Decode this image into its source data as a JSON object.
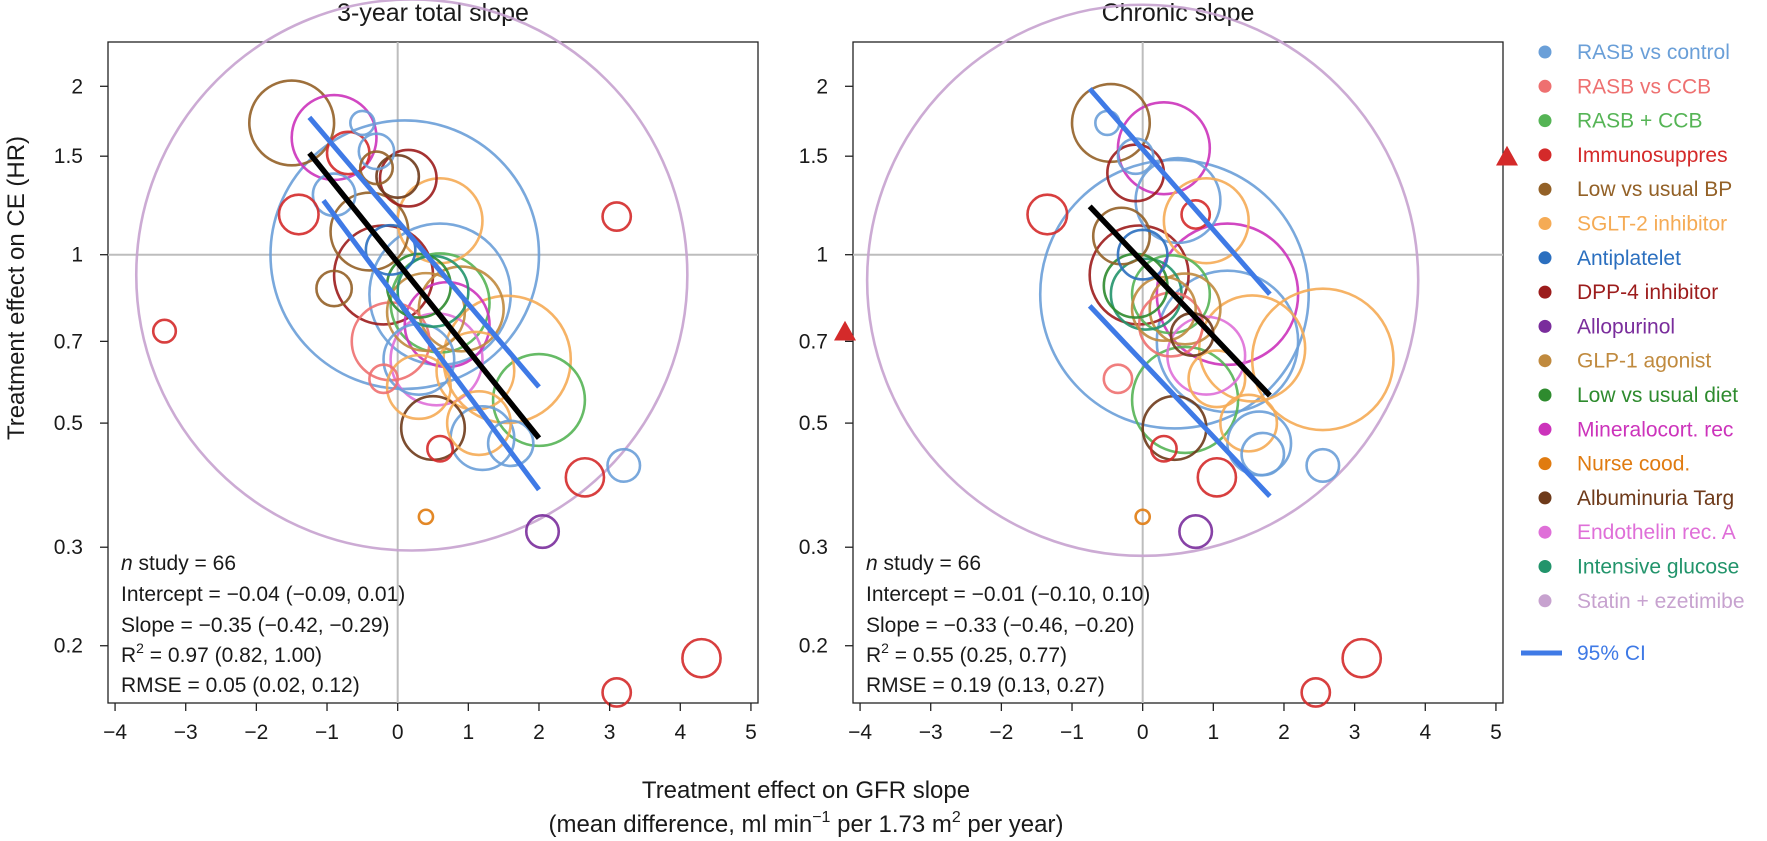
{
  "chart_data": {
    "type": "scatter",
    "shared": {
      "ylabel": "Treatment effect on CE (HR)",
      "xlabel_line1": "Treatment effect on GFR slope",
      "xlabel_line2_parts": [
        "(mean difference, ml min",
        "−1",
        " per 1.73 m",
        "2",
        " per year)"
      ],
      "x_ticks": [
        -4,
        -3,
        -2,
        -1,
        0,
        1,
        2,
        3,
        4,
        5
      ],
      "x_tick_labels": [
        "−4",
        "−3",
        "−2",
        "−1",
        "0",
        "1",
        "2",
        "3",
        "4",
        "5"
      ],
      "y_ticks": [
        0.2,
        0.3,
        0.5,
        0.7,
        1,
        1.5,
        2
      ],
      "y_tick_labels": [
        "0.2",
        "0.3",
        "0.5",
        "0.7",
        "1",
        "1.5",
        "2"
      ],
      "xlim": [
        -4.1,
        5.1
      ],
      "ylim": [
        0.158,
        2.4
      ],
      "y_scale": "log",
      "reference_lines": {
        "x": 0,
        "y": 1
      }
    },
    "categories": [
      {
        "name": "RASB vs control",
        "color": "#6a9fd8"
      },
      {
        "name": "RASB vs CCB",
        "color": "#ee7070"
      },
      {
        "name": "RASB + CCB",
        "color": "#55b455"
      },
      {
        "name": "Immunosuppres",
        "color": "#d42a2a"
      },
      {
        "name": "Low vs usual BP",
        "color": "#936127"
      },
      {
        "name": "SGLT-2 inhibitor",
        "color": "#f5ab55"
      },
      {
        "name": "Antiplatelet",
        "color": "#2b6fbf"
      },
      {
        "name": "DPP-4 inhibitor",
        "color": "#9c1c1c"
      },
      {
        "name": "Allopurinol",
        "color": "#7a2d9c"
      },
      {
        "name": "GLP-1 agonist",
        "color": "#c08a3e"
      },
      {
        "name": "Low vs usual diet",
        "color": "#2e8b2e"
      },
      {
        "name": "Mineralocort. rec",
        "color": "#cc33bb"
      },
      {
        "name": "Nurse cood.",
        "color": "#e07b10"
      },
      {
        "name": "Albuminuria Targ",
        "color": "#6e3a1a"
      },
      {
        "name": "Endothelin rec. A",
        "color": "#df6fd8"
      },
      {
        "name": "Intensive glucose",
        "color": "#22946b"
      },
      {
        "name": "Statin + ezetimibe",
        "color": "#c7a2cf"
      }
    ],
    "legend_ci_label": "95% CI",
    "panels": [
      {
        "title": "3-year total slope",
        "stats": {
          "n_prefix": "n",
          "n_rest": " study = 66",
          "intercept": "Intercept = −0.04 (−0.09, 0.01)",
          "slope": "Slope = −0.35 (−0.42, −0.29)",
          "r2_prefix": "R",
          "r2_sup": "2",
          "r2_rest": " = 0.97 (0.82, 1.00)",
          "rmse": "RMSE = 0.05 (0.02, 0.12)"
        },
        "regression_line": {
          "x": [
            -1.25,
            2.0
          ],
          "y": [
            1.52,
            0.47
          ]
        },
        "ci_upper": {
          "x": [
            -1.25,
            2.0
          ],
          "y": [
            1.76,
            0.58
          ]
        },
        "ci_lower": {
          "x": [
            -1.05,
            2.0
          ],
          "y": [
            1.25,
            0.38
          ]
        },
        "out_of_range_markers": [],
        "points": [
          {
            "x": 0.2,
            "y": 0.92,
            "r": 3.9,
            "cat": 16
          },
          {
            "x": 0.1,
            "y": 1.0,
            "r": 1.9,
            "cat": 0
          },
          {
            "x": -0.5,
            "y": 1.72,
            "r": 0.17,
            "cat": 0
          },
          {
            "x": -0.3,
            "y": 1.53,
            "r": 0.25,
            "cat": 0
          },
          {
            "x": -0.9,
            "y": 1.28,
            "r": 0.3,
            "cat": 0
          },
          {
            "x": 0.6,
            "y": 0.85,
            "r": 1.0,
            "cat": 0
          },
          {
            "x": 1.2,
            "y": 0.47,
            "r": 0.45,
            "cat": 0
          },
          {
            "x": 1.6,
            "y": 0.46,
            "r": 0.32,
            "cat": 0
          },
          {
            "x": 3.2,
            "y": 0.42,
            "r": 0.23,
            "cat": 0
          },
          {
            "x": 0.3,
            "y": 0.65,
            "r": 0.5,
            "cat": 0
          },
          {
            "x": -1.5,
            "y": 1.72,
            "r": 0.6,
            "cat": 4
          },
          {
            "x": -0.9,
            "y": 1.62,
            "r": 0.6,
            "cat": 11
          },
          {
            "x": -0.7,
            "y": 1.52,
            "r": 0.3,
            "cat": 3
          },
          {
            "x": -1.4,
            "y": 1.18,
            "r": 0.28,
            "cat": 3
          },
          {
            "x": -3.3,
            "y": 0.73,
            "r": 0.16,
            "cat": 3
          },
          {
            "x": 3.1,
            "y": 1.17,
            "r": 0.2,
            "cat": 3
          },
          {
            "x": 2.65,
            "y": 0.4,
            "r": 0.27,
            "cat": 3
          },
          {
            "x": 0.6,
            "y": 0.45,
            "r": 0.18,
            "cat": 3
          },
          {
            "x": 4.3,
            "y": 0.19,
            "r": 0.27,
            "cat": 3
          },
          {
            "x": 3.1,
            "y": 0.165,
            "r": 0.2,
            "cat": 3
          },
          {
            "x": -0.3,
            "y": 1.43,
            "r": 0.23,
            "cat": 4
          },
          {
            "x": -0.9,
            "y": 0.87,
            "r": 0.25,
            "cat": 4
          },
          {
            "x": -0.4,
            "y": 1.1,
            "r": 0.55,
            "cat": 4
          },
          {
            "x": 0.15,
            "y": 1.37,
            "r": 0.4,
            "cat": 7
          },
          {
            "x": -0.2,
            "y": 0.92,
            "r": 0.7,
            "cat": 7
          },
          {
            "x": 0.0,
            "y": 1.38,
            "r": 0.3,
            "cat": 13
          },
          {
            "x": 0.5,
            "y": 0.49,
            "r": 0.45,
            "cat": 13
          },
          {
            "x": 0.6,
            "y": 1.15,
            "r": 0.6,
            "cat": 5
          },
          {
            "x": 1.55,
            "y": 0.65,
            "r": 0.9,
            "cat": 5
          },
          {
            "x": 1.1,
            "y": 0.62,
            "r": 0.55,
            "cat": 5
          },
          {
            "x": 0.3,
            "y": 0.58,
            "r": 0.45,
            "cat": 5
          },
          {
            "x": 1.15,
            "y": 0.5,
            "r": 0.45,
            "cat": 5
          },
          {
            "x": 2.0,
            "y": 0.55,
            "r": 0.65,
            "cat": 2
          },
          {
            "x": 0.6,
            "y": 0.82,
            "r": 0.7,
            "cat": 2
          },
          {
            "x": -0.2,
            "y": 0.6,
            "r": 0.2,
            "cat": 1
          },
          {
            "x": -0.1,
            "y": 0.7,
            "r": 0.55,
            "cat": 1
          },
          {
            "x": 0.7,
            "y": 0.75,
            "r": 0.6,
            "cat": 11
          },
          {
            "x": 0.55,
            "y": 0.65,
            "r": 0.65,
            "cat": 14
          },
          {
            "x": 0.4,
            "y": 0.79,
            "r": 0.55,
            "cat": 9
          },
          {
            "x": 0.9,
            "y": 0.8,
            "r": 0.6,
            "cat": 9
          },
          {
            "x": 0.4,
            "y": 0.34,
            "r": 0.1,
            "cat": 12
          },
          {
            "x": 2.05,
            "y": 0.32,
            "r": 0.23,
            "cat": 8
          },
          {
            "x": 0.3,
            "y": 0.88,
            "r": 0.45,
            "cat": 10
          },
          {
            "x": 0.5,
            "y": 0.86,
            "r": 0.5,
            "cat": 15
          },
          {
            "x": -0.1,
            "y": 1.02,
            "r": 0.35,
            "cat": 6
          }
        ]
      },
      {
        "title": "Chronic slope",
        "stats": {
          "n_prefix": "n",
          "n_rest": " study = 66",
          "intercept": "Intercept = −0.01 (−0.10, 0.10)",
          "slope": "Slope = −0.33 (−0.46, −0.20)",
          "r2_prefix": "R",
          "r2_sup": "2",
          "r2_rest": " = 0.55 (0.25, 0.77)",
          "rmse": "RMSE = 0.19 (0.13, 0.27)"
        },
        "regression_line": {
          "x": [
            -0.75,
            1.8
          ],
          "y": [
            1.22,
            0.56
          ]
        },
        "ci_upper": {
          "x": [
            -0.75,
            1.8
          ],
          "y": [
            1.98,
            0.85
          ]
        },
        "ci_lower": {
          "x": [
            -0.75,
            1.8
          ],
          "y": [
            0.81,
            0.37
          ]
        },
        "out_of_range_markers": [
          {
            "side": "left",
            "y": 0.73,
            "color": "#d42a2a"
          },
          {
            "side": "right",
            "y": 1.5,
            "color": "#d42a2a"
          }
        ],
        "points": [
          {
            "x": 0.0,
            "y": 0.9,
            "r": 3.9,
            "cat": 16
          },
          {
            "x": 0.45,
            "y": 0.85,
            "r": 1.9,
            "cat": 0
          },
          {
            "x": -0.5,
            "y": 1.72,
            "r": 0.17,
            "cat": 0
          },
          {
            "x": -0.1,
            "y": 1.5,
            "r": 0.25,
            "cat": 0
          },
          {
            "x": 1.2,
            "y": 0.7,
            "r": 1.0,
            "cat": 0
          },
          {
            "x": 1.65,
            "y": 0.46,
            "r": 0.45,
            "cat": 0
          },
          {
            "x": 1.7,
            "y": 0.44,
            "r": 0.3,
            "cat": 0
          },
          {
            "x": 2.55,
            "y": 0.42,
            "r": 0.23,
            "cat": 0
          },
          {
            "x": 0.5,
            "y": 1.25,
            "r": 0.6,
            "cat": 0
          },
          {
            "x": -0.45,
            "y": 1.72,
            "r": 0.55,
            "cat": 4
          },
          {
            "x": 0.3,
            "y": 1.55,
            "r": 0.65,
            "cat": 11
          },
          {
            "x": 1.2,
            "y": 0.85,
            "r": 1.0,
            "cat": 11
          },
          {
            "x": -1.35,
            "y": 1.18,
            "r": 0.28,
            "cat": 3
          },
          {
            "x": 0.75,
            "y": 1.18,
            "r": 0.2,
            "cat": 3
          },
          {
            "x": 1.05,
            "y": 0.4,
            "r": 0.27,
            "cat": 3
          },
          {
            "x": 0.3,
            "y": 0.45,
            "r": 0.18,
            "cat": 3
          },
          {
            "x": 3.1,
            "y": 0.19,
            "r": 0.27,
            "cat": 3
          },
          {
            "x": 2.45,
            "y": 0.165,
            "r": 0.2,
            "cat": 3
          },
          {
            "x": -0.1,
            "y": 1.4,
            "r": 0.4,
            "cat": 7
          },
          {
            "x": -0.05,
            "y": 0.92,
            "r": 0.7,
            "cat": 7
          },
          {
            "x": 0.7,
            "y": 0.72,
            "r": 0.3,
            "cat": 13
          },
          {
            "x": 0.45,
            "y": 0.49,
            "r": 0.45,
            "cat": 13
          },
          {
            "x": -0.3,
            "y": 1.08,
            "r": 0.4,
            "cat": 4
          },
          {
            "x": 0.9,
            "y": 1.15,
            "r": 0.6,
            "cat": 5
          },
          {
            "x": 2.55,
            "y": 0.65,
            "r": 1.0,
            "cat": 5
          },
          {
            "x": 1.55,
            "y": 0.68,
            "r": 0.75,
            "cat": 5
          },
          {
            "x": 1.05,
            "y": 0.6,
            "r": 0.4,
            "cat": 5
          },
          {
            "x": 1.5,
            "y": 0.5,
            "r": 0.4,
            "cat": 5
          },
          {
            "x": 0.6,
            "y": 0.55,
            "r": 0.75,
            "cat": 2
          },
          {
            "x": 0.4,
            "y": 0.85,
            "r": 0.55,
            "cat": 2
          },
          {
            "x": -0.35,
            "y": 0.6,
            "r": 0.2,
            "cat": 1
          },
          {
            "x": 0.4,
            "y": 0.75,
            "r": 0.45,
            "cat": 1
          },
          {
            "x": 0.9,
            "y": 0.66,
            "r": 0.55,
            "cat": 14
          },
          {
            "x": 0.3,
            "y": 0.8,
            "r": 0.45,
            "cat": 9
          },
          {
            "x": 0.6,
            "y": 0.8,
            "r": 0.5,
            "cat": 9
          },
          {
            "x": 0.0,
            "y": 0.34,
            "r": 0.1,
            "cat": 12
          },
          {
            "x": 0.75,
            "y": 0.32,
            "r": 0.23,
            "cat": 8
          },
          {
            "x": -0.1,
            "y": 0.88,
            "r": 0.45,
            "cat": 10
          },
          {
            "x": 0.05,
            "y": 0.85,
            "r": 0.5,
            "cat": 15
          },
          {
            "x": 0.0,
            "y": 1.0,
            "r": 0.35,
            "cat": 6
          }
        ]
      }
    ]
  }
}
